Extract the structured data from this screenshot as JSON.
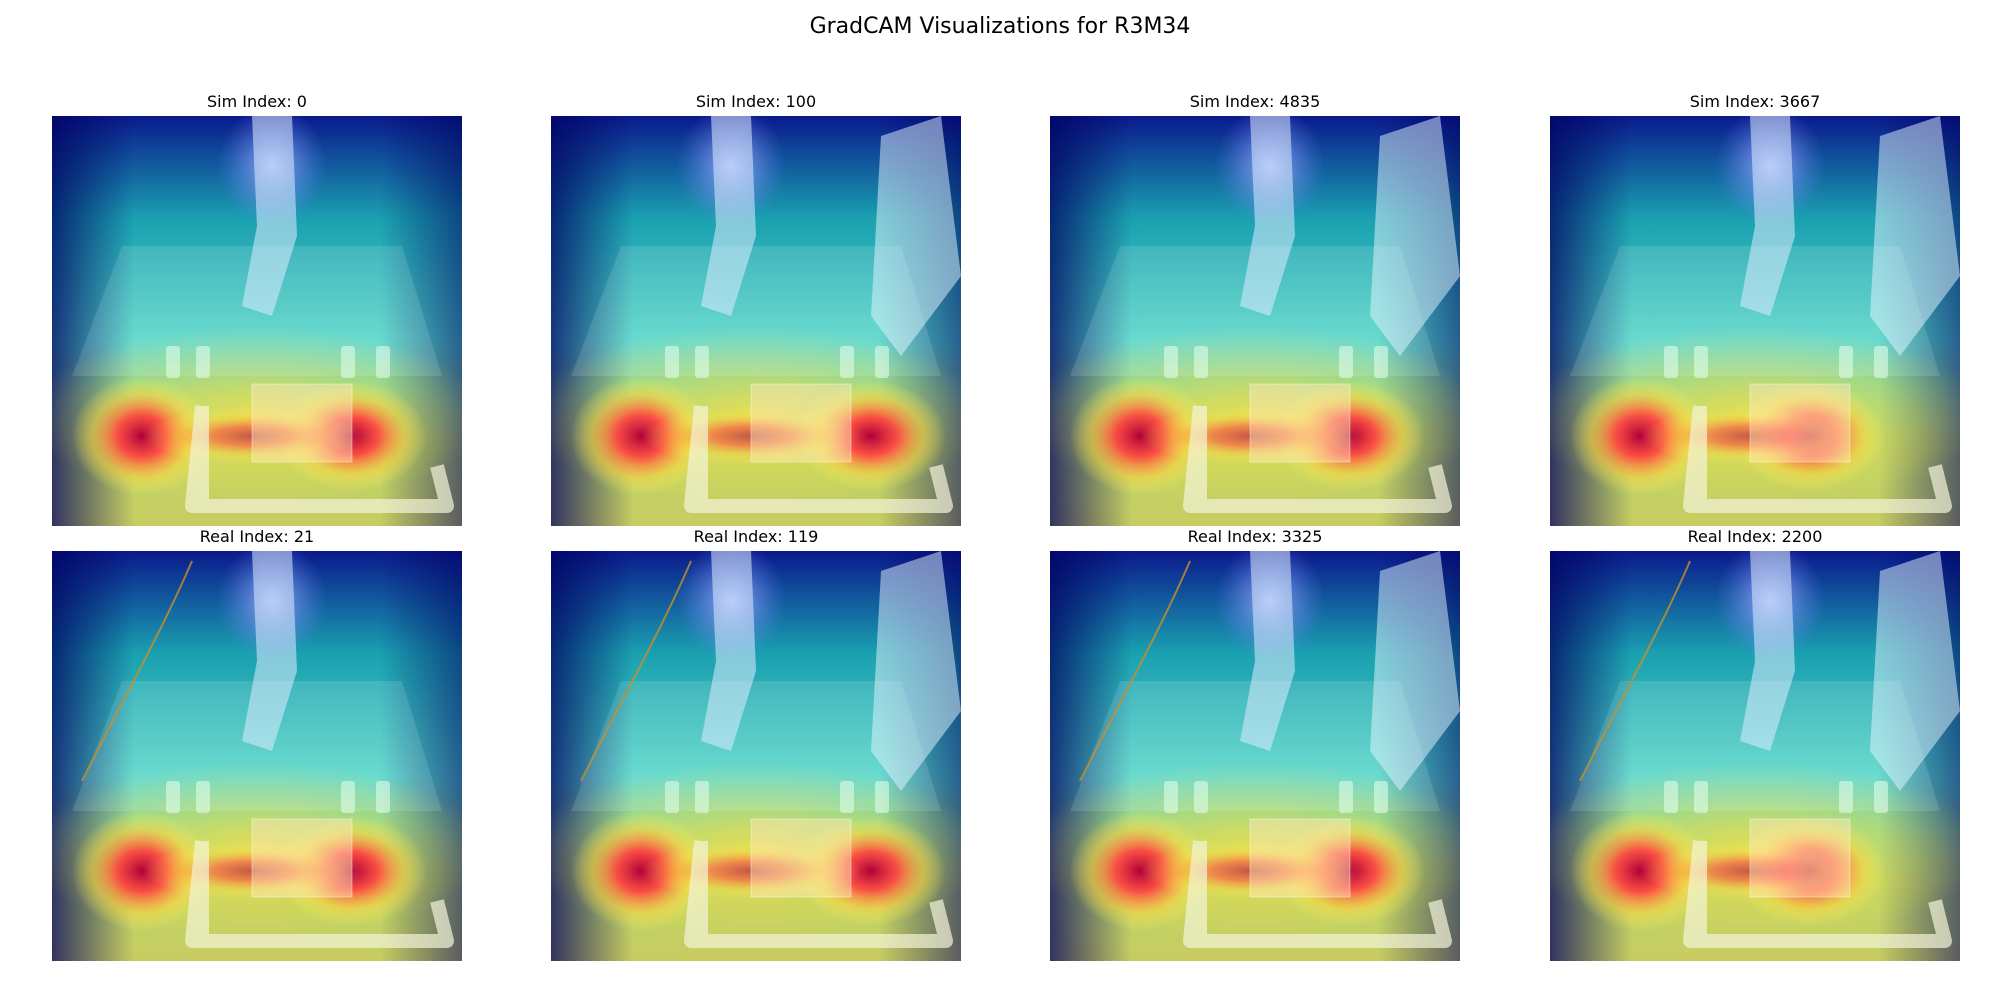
{
  "figure": {
    "title": "GradCAM Visualizations for R3M34"
  },
  "panels": [
    {
      "title": "Sim Index: 0"
    },
    {
      "title": "Sim Index: 100"
    },
    {
      "title": "Sim Index: 4835"
    },
    {
      "title": "Sim Index: 3667"
    },
    {
      "title": "Real Index: 21"
    },
    {
      "title": "Real Index: 119"
    },
    {
      "title": "Real Index: 3325"
    },
    {
      "title": "Real Index: 2200"
    }
  ],
  "colors": {
    "heat_low": "#00007f",
    "heat_mid_low": "#00a0ff",
    "heat_mid": "#40ffc0",
    "heat_mid_high": "#ffff00",
    "heat_high": "#ff3000",
    "heat_max": "#7f0000"
  }
}
